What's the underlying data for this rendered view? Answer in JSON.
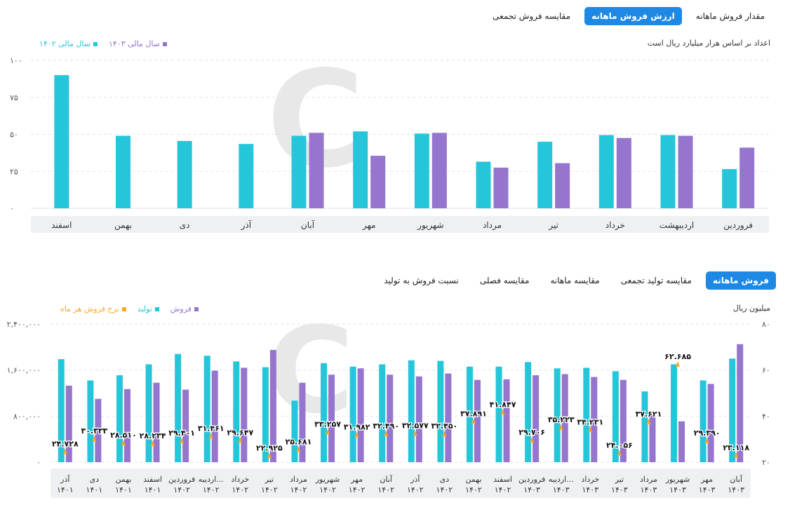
{
  "top": {
    "tabs": [
      {
        "label": "مقدار فروش ماهانه",
        "active": false
      },
      {
        "label": "ارزش فروش ماهانه",
        "active": true
      },
      {
        "label": "مقایسه فروش تجمعی",
        "active": false
      }
    ],
    "note": "اعداد بر اساس هزار میلیارد ریال است"
  },
  "bottom": {
    "tabs": [
      {
        "label": "فروش ماهانه",
        "active": true
      },
      {
        "label": "مقایسه تولید تجمعی",
        "active": false
      },
      {
        "label": "مقایسه ماهانه",
        "active": false
      },
      {
        "label": "مقایسه فصلی",
        "active": false
      },
      {
        "label": "نسبت فروش به تولید",
        "active": false
      }
    ],
    "unit": "میلیون ریال"
  },
  "colors": {
    "teal": "#26c6da",
    "purple": "#9575cd",
    "orange": "#ffa726",
    "tab_active": "#1e88e5"
  },
  "chart_data": [
    {
      "type": "bar",
      "categories": [
        "فروردین",
        "اردیبهشت",
        "خرداد",
        "تیر",
        "مرداد",
        "شهریور",
        "مهر",
        "آبان",
        "آذر",
        "دی",
        "بهمن",
        "اسفند"
      ],
      "series": [
        {
          "name": "سال مالی ۱۴۰۲",
          "color": "#26c6da",
          "values": [
            26.5,
            49.5,
            49.5,
            45,
            31.5,
            50.5,
            52,
            49,
            43.5,
            45.5,
            49,
            90
          ]
        },
        {
          "name": "سال مالی ۱۴۰۳",
          "color": "#9575cd",
          "values": [
            41,
            49,
            47.5,
            30.5,
            27.5,
            51,
            35.5,
            51,
            null,
            null,
            null,
            null
          ]
        }
      ],
      "yticks": [
        "۰",
        "۲۵",
        "۵۰",
        "۷۵",
        "۱۰۰"
      ],
      "ylim": [
        0,
        100
      ],
      "grid": true,
      "legend_position": "top-left"
    },
    {
      "type": "bar",
      "categories": [
        "آذر ۱۴۰۱",
        "دی ۱۴۰۱",
        "بهمن ۱۴۰۱",
        "اسفند ۱۴۰۱",
        "فروردین ۱۴۰۲",
        "اردیبه... ۱۴۰۲",
        "خرداد ۱۴۰۲",
        "تیر ۱۴۰۲",
        "مرداد ۱۴۰۲",
        "شهریور ۱۴۰۲",
        "مهر ۱۴۰۲",
        "آبان ۱۴۰۲",
        "آذر ۱۴۰۲",
        "دی ۱۴۰۲",
        "بهمن ۱۴۰۲",
        "اسفند ۱۴۰۲",
        "فروردین ۱۴۰۳",
        "اردیبه... ۱۴۰۳",
        "خرداد ۱۴۰۳",
        "تیر ۱۴۰۳",
        "مرداد ۱۴۰۳",
        "شهریور ۱۴۰۳",
        "مهر ۱۴۰۳",
        "آبان ۱۴۰۳"
      ],
      "series": [
        {
          "name": "فروش",
          "color": "#9575cd",
          "axis": "left",
          "values": [
            1330000,
            1100000,
            1270000,
            1380000,
            1260000,
            1590000,
            1640000,
            1950000,
            1380000,
            1520000,
            1630000,
            1520000,
            1490000,
            1540000,
            1430000,
            1440000,
            1510000,
            1530000,
            1480000,
            1430000,
            830000,
            710000,
            1360000,
            2050000
          ]
        },
        {
          "name": "تولید",
          "color": "#26c6da",
          "axis": "left",
          "values": [
            1790000,
            1420000,
            1510000,
            1700000,
            1880000,
            1850000,
            1750000,
            1650000,
            1070000,
            1720000,
            1660000,
            1700000,
            1770000,
            1760000,
            1660000,
            1660000,
            1740000,
            1630000,
            1640000,
            1580000,
            1230000,
            1700000,
            1420000,
            1800000
          ]
        },
        {
          "name": "نرخ فروش هر ماه",
          "color": "#ffa726",
          "axis": "right",
          "values": [
            24.728,
            30.333,
            28.51,
            28.234,
            29.401,
            31.461,
            29.647,
            22.925,
            25.681,
            33.257,
            31.982,
            32.49,
            32.577,
            32.45,
            37.891,
            41.847,
            29.706,
            35.223,
            34.231,
            24.056,
            37.621,
            62.685,
            29.39,
            23.118
          ]
        }
      ],
      "rate_labels": [
        "۲۴.۷۲۸",
        "۳۰.۳۳۳",
        "۲۸.۵۱۰",
        "۲۸.۲۳۴",
        "۲۹.۴۰۱",
        "۳۱.۴۶۱",
        "۲۹.۶۴۷",
        "۲۲.۹۲۵",
        "۲۵.۶۸۱",
        "۳۳.۲۵۷",
        "۳۱.۹۸۲",
        "۳۲.۴۹۰",
        "۳۲.۵۷۷",
        "۳۲.۴۵۰",
        "۳۷.۸۹۱",
        "۴۱.۸۴۷",
        "۲۹.۷۰۶",
        "۳۵.۲۲۳",
        "۳۴.۲۳۱",
        "۲۴.۰۵۶",
        "۳۷.۶۲۱",
        "۶۲.۶۸۵",
        "۲۹.۳۹۰",
        "۲۳.۱۱۸"
      ],
      "yticks_left": [
        "۰",
        "۸۰۰,۰۰۰",
        "۱,۶۰۰,۰۰۰",
        "۲,۴۰۰,۰۰۰"
      ],
      "ylim_left": [
        0,
        2400000
      ],
      "yticks_right": [
        "۲۰",
        "۴۰",
        "۶۰",
        "۸۰"
      ],
      "ylim_right": [
        20,
        80
      ],
      "grid": true,
      "legend_position": "top-left"
    }
  ]
}
